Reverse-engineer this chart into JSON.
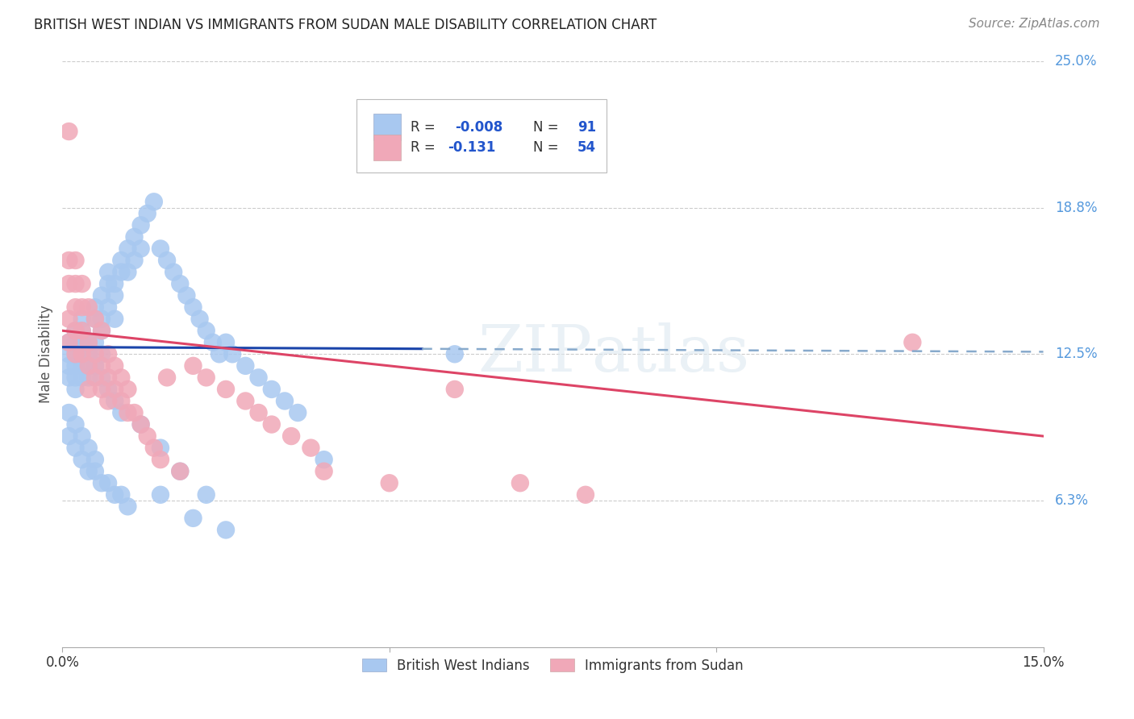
{
  "title": "BRITISH WEST INDIAN VS IMMIGRANTS FROM SUDAN MALE DISABILITY CORRELATION CHART",
  "source": "Source: ZipAtlas.com",
  "ylabel": "Male Disability",
  "xlim": [
    0.0,
    0.15
  ],
  "ylim": [
    0.0,
    0.25
  ],
  "grid_color": "#cccccc",
  "background_color": "#ffffff",
  "watermark": "ZIPatlas",
  "blue_color": "#a8c8f0",
  "pink_color": "#f0a8b8",
  "blue_line_color": "#1a44aa",
  "pink_line_color": "#dd4466",
  "blue_dashed_color": "#88aacc",
  "label1": "British West Indians",
  "label2": "Immigrants from Sudan",
  "blue_r": -0.008,
  "pink_r": -0.131,
  "blue_n": 91,
  "pink_n": 54,
  "blue_x": [
    0.001,
    0.001,
    0.001,
    0.001,
    0.002,
    0.002,
    0.002,
    0.002,
    0.002,
    0.002,
    0.003,
    0.003,
    0.003,
    0.003,
    0.003,
    0.004,
    0.004,
    0.004,
    0.004,
    0.005,
    0.005,
    0.005,
    0.005,
    0.006,
    0.006,
    0.006,
    0.006,
    0.007,
    0.007,
    0.007,
    0.008,
    0.008,
    0.008,
    0.009,
    0.009,
    0.01,
    0.01,
    0.011,
    0.011,
    0.012,
    0.012,
    0.013,
    0.014,
    0.015,
    0.016,
    0.017,
    0.018,
    0.019,
    0.02,
    0.021,
    0.022,
    0.023,
    0.024,
    0.025,
    0.026,
    0.028,
    0.03,
    0.032,
    0.034,
    0.036,
    0.001,
    0.001,
    0.002,
    0.002,
    0.003,
    0.003,
    0.004,
    0.004,
    0.005,
    0.005,
    0.006,
    0.007,
    0.008,
    0.009,
    0.01,
    0.015,
    0.02,
    0.025,
    0.04,
    0.06,
    0.003,
    0.004,
    0.005,
    0.006,
    0.007,
    0.008,
    0.009,
    0.012,
    0.015,
    0.018,
    0.022
  ],
  "blue_y": [
    0.125,
    0.13,
    0.12,
    0.115,
    0.13,
    0.135,
    0.12,
    0.125,
    0.115,
    0.11,
    0.14,
    0.135,
    0.13,
    0.12,
    0.115,
    0.125,
    0.13,
    0.12,
    0.115,
    0.14,
    0.145,
    0.13,
    0.12,
    0.15,
    0.14,
    0.135,
    0.125,
    0.16,
    0.155,
    0.145,
    0.155,
    0.15,
    0.14,
    0.165,
    0.16,
    0.17,
    0.16,
    0.175,
    0.165,
    0.18,
    0.17,
    0.185,
    0.19,
    0.17,
    0.165,
    0.16,
    0.155,
    0.15,
    0.145,
    0.14,
    0.135,
    0.13,
    0.125,
    0.13,
    0.125,
    0.12,
    0.115,
    0.11,
    0.105,
    0.1,
    0.1,
    0.09,
    0.095,
    0.085,
    0.09,
    0.08,
    0.085,
    0.075,
    0.08,
    0.075,
    0.07,
    0.07,
    0.065,
    0.065,
    0.06,
    0.065,
    0.055,
    0.05,
    0.08,
    0.125,
    0.13,
    0.125,
    0.12,
    0.115,
    0.11,
    0.105,
    0.1,
    0.095,
    0.085,
    0.075,
    0.065
  ],
  "pink_x": [
    0.001,
    0.001,
    0.001,
    0.001,
    0.001,
    0.002,
    0.002,
    0.002,
    0.002,
    0.002,
    0.003,
    0.003,
    0.003,
    0.003,
    0.004,
    0.004,
    0.004,
    0.004,
    0.005,
    0.005,
    0.005,
    0.006,
    0.006,
    0.006,
    0.007,
    0.007,
    0.007,
    0.008,
    0.008,
    0.009,
    0.009,
    0.01,
    0.01,
    0.011,
    0.012,
    0.013,
    0.014,
    0.015,
    0.016,
    0.018,
    0.02,
    0.022,
    0.025,
    0.028,
    0.03,
    0.032,
    0.035,
    0.038,
    0.04,
    0.05,
    0.06,
    0.07,
    0.08,
    0.13
  ],
  "pink_y": [
    0.22,
    0.165,
    0.155,
    0.14,
    0.13,
    0.165,
    0.155,
    0.145,
    0.135,
    0.125,
    0.155,
    0.145,
    0.135,
    0.125,
    0.145,
    0.13,
    0.12,
    0.11,
    0.14,
    0.125,
    0.115,
    0.135,
    0.12,
    0.11,
    0.125,
    0.115,
    0.105,
    0.12,
    0.11,
    0.115,
    0.105,
    0.11,
    0.1,
    0.1,
    0.095,
    0.09,
    0.085,
    0.08,
    0.115,
    0.075,
    0.12,
    0.115,
    0.11,
    0.105,
    0.1,
    0.095,
    0.09,
    0.085,
    0.075,
    0.07,
    0.11,
    0.07,
    0.065,
    0.13
  ],
  "blue_trend": [
    0.0,
    0.15
  ],
  "blue_trend_y": [
    0.128,
    0.126
  ],
  "pink_trend": [
    0.0,
    0.15
  ],
  "pink_trend_y": [
    0.135,
    0.09
  ]
}
